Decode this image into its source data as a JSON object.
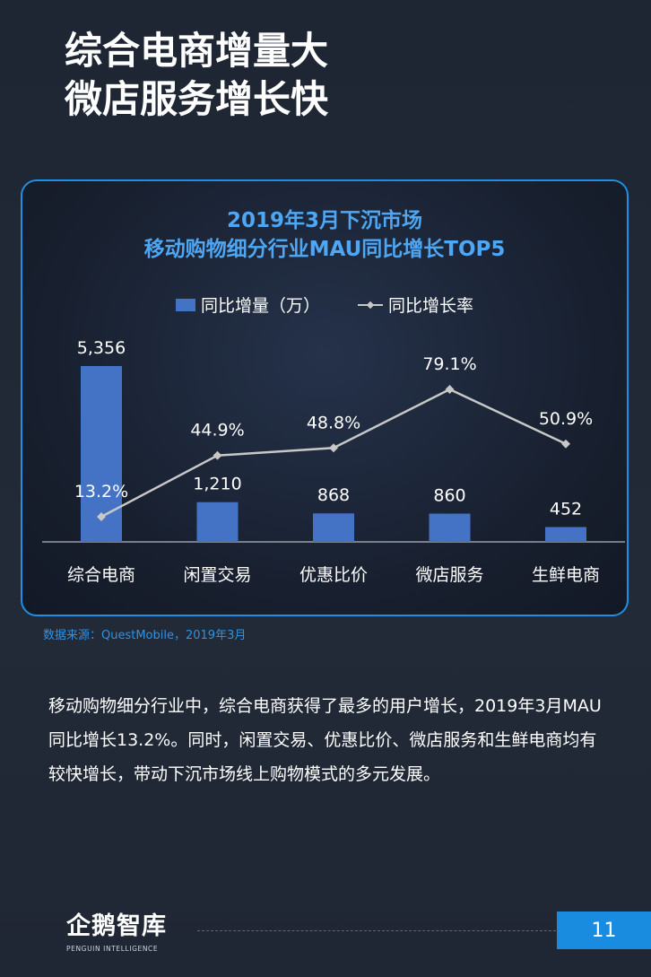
{
  "page": {
    "title_lines": [
      "综合电商增量大",
      "微店服务增长快"
    ],
    "source": "数据来源：QuestMobile，2019年3月",
    "body_text": "移动购物细分行业中，综合电商获得了最多的用户增长，2019年3月MAU同比增长13.2%。同时，闲置交易、优惠比价、微店服务和生鲜电商均有较快增长，带动下沉市场线上购物模式的多元发展。",
    "logo_text": "企鹅智库",
    "logo_subtext": "PENGUIN INTELLIGENCE",
    "page_number": "11"
  },
  "colors": {
    "bar": "#4472c4",
    "line": "#c8c8c8",
    "title": "#4fa6f2",
    "accent": "#1a8ce0"
  },
  "chart_data": {
    "type": "bar",
    "title_lines": [
      "2019年3月下沉市场",
      "移动购物细分行业MAU同比增长TOP5"
    ],
    "categories": [
      "综合电商",
      "闲置交易",
      "优惠比价",
      "微店服务",
      "生鲜电商"
    ],
    "series": [
      {
        "name": "同比增量（万）",
        "type": "bar",
        "values": [
          5356,
          1210,
          868,
          860,
          452
        ],
        "labels": [
          "5,356",
          "1,210",
          "868",
          "860",
          "452"
        ]
      },
      {
        "name": "同比增长率",
        "type": "line",
        "values": [
          13.2,
          44.9,
          48.8,
          79.1,
          50.9
        ],
        "labels": [
          "13.2%",
          "44.9%",
          "48.8%",
          "79.1%",
          "50.9%"
        ]
      }
    ],
    "bar_axis_range": [
      0,
      5356
    ],
    "line_axis_range": [
      0,
      100
    ],
    "legend_position": "top-center",
    "grid": false
  }
}
